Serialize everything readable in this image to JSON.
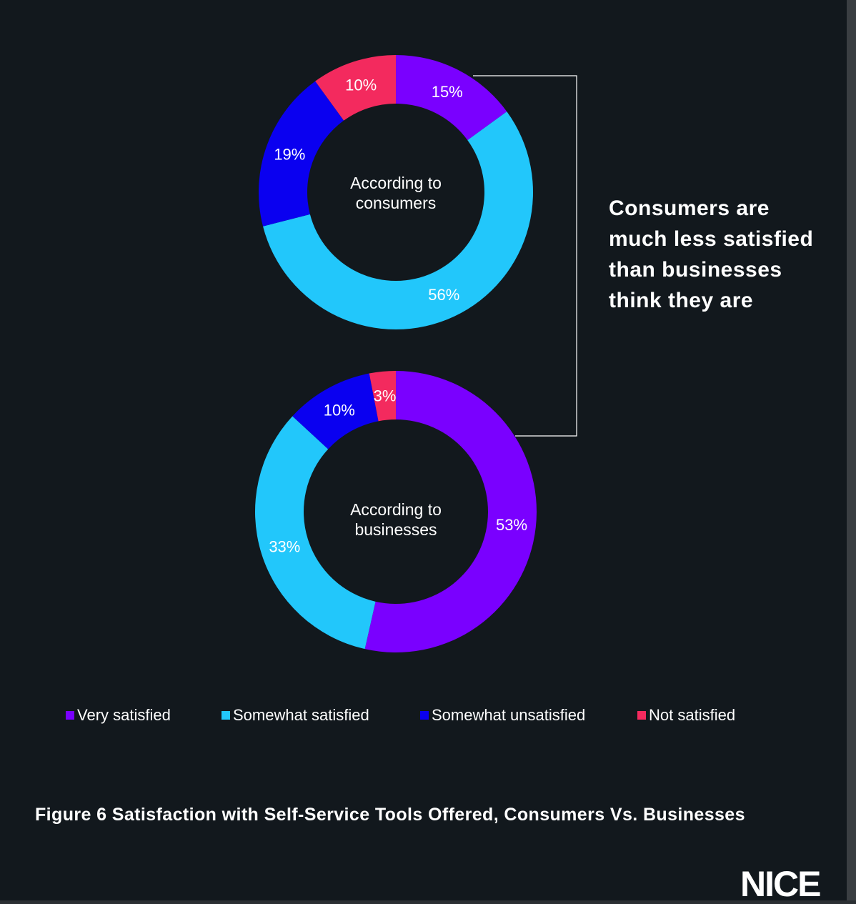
{
  "chart_data": [
    {
      "type": "pie",
      "center_label": [
        "According to",
        "consumers"
      ],
      "categories": [
        "Very satisfied",
        "Somewhat satisfied",
        "Somewhat unsatisfied",
        "Not satisfied"
      ],
      "values": [
        15,
        56,
        19,
        10
      ],
      "value_labels": [
        "15%",
        "56%",
        "19%",
        "10%"
      ]
    },
    {
      "type": "pie",
      "center_label": [
        "According to",
        "businesses"
      ],
      "categories": [
        "Very satisfied",
        "Somewhat satisfied",
        "Somewhat unsatisfied",
        "Not satisfied"
      ],
      "values": [
        53,
        33,
        10,
        3
      ],
      "value_labels": [
        "53%",
        "33%",
        "10%",
        "3%"
      ]
    }
  ],
  "legend": [
    {
      "label": "Very satisfied",
      "color": "#7a00ff"
    },
    {
      "label": "Somewhat satisfied",
      "color": "#22c7fb"
    },
    {
      "label": "Somewhat unsatisfied",
      "color": "#0a00f0"
    },
    {
      "label": "Not satisfied",
      "color": "#f32a5e"
    }
  ],
  "headline": "Consumers are much less satisfied than businesses think they are",
  "caption": "Figure 6 Satisfaction with Self-Service Tools Offered, Consumers Vs. Businesses",
  "logo_text": "NICE"
}
